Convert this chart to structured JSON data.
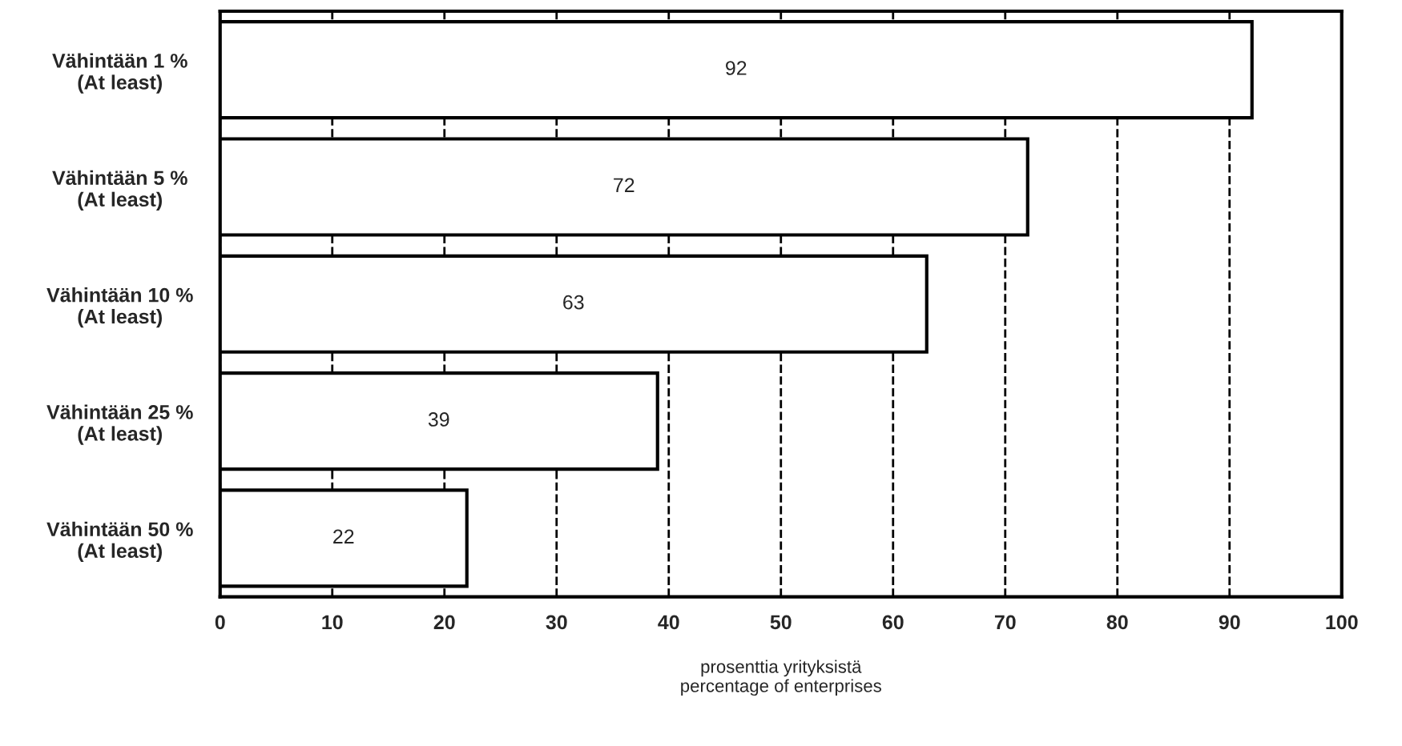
{
  "chart_data": {
    "type": "bar",
    "orientation": "horizontal",
    "categories": [
      "Vähintään 1 %\n(At least)",
      "Vähintään 5 %\n(At least)",
      "Vähintään 10 %\n(At least)",
      "Vähintään 25 %\n(At least)",
      "Vähintään 50 %\n(At least)"
    ],
    "values": [
      92,
      72,
      63,
      39,
      22
    ],
    "color": "#ffffff",
    "xlim": [
      0,
      100
    ],
    "xticks": [
      0,
      10,
      20,
      30,
      40,
      50,
      60,
      70,
      80,
      90,
      100
    ],
    "xlabel": "prosenttia yrityksistä\npercentage of enterprises",
    "grid": "x",
    "line_style": "dashed",
    "data_labels": true
  }
}
